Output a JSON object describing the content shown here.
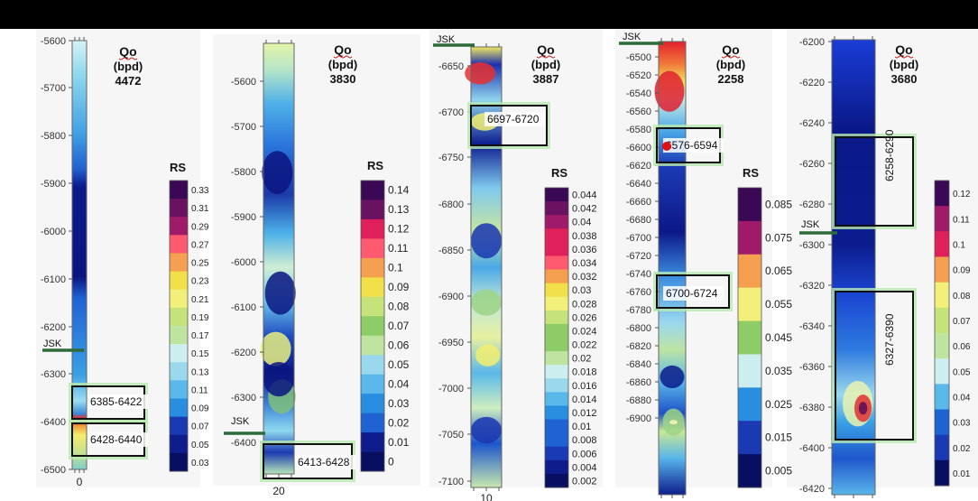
{
  "chart_data": [
    {
      "type": "heatmap",
      "well": {
        "qo_label": "Qo",
        "qo_unit": "(bpd)",
        "qo_value": "4472"
      },
      "y_ticks": [
        "-5600",
        "-5700",
        "-5800",
        "-5900",
        "-6000",
        "-6100",
        "-6200",
        "-6300",
        "-6400",
        "-6500"
      ],
      "ylim": [
        -5600,
        -6500
      ],
      "x_tick": "0",
      "marker": {
        "label": "JSK",
        "depth": -6325
      },
      "intervals": [
        {
          "label": "6385-6422",
          "from": -6330,
          "to": -6410
        },
        {
          "label": "6428-6440",
          "from": -6415,
          "to": -6470
        }
      ],
      "colorbar": {
        "title": "RS",
        "min": 0.03,
        "max": 0.33,
        "ticks": [
          "0.33",
          "0.31",
          "0.29",
          "0.27",
          "0.25",
          "0.23",
          "0.21",
          "0.19",
          "0.17",
          "0.15",
          "0.13",
          "0.11",
          "0.09",
          "0.07",
          "0.05",
          "0.03"
        ]
      }
    },
    {
      "type": "heatmap",
      "well": {
        "qo_label": "Qo",
        "qo_unit": "(bpd)",
        "qo_value": "3830"
      },
      "y_ticks": [
        "-5600",
        "-5700",
        "-5800",
        "-5900",
        "-6000",
        "-6100",
        "-6200",
        "-6300",
        "-6400"
      ],
      "ylim": [
        -5530,
        -6460
      ],
      "x_tick": "20",
      "marker": {
        "label": "JSK",
        "depth": -6378
      },
      "intervals": [
        {
          "label": "6413-6428",
          "from": -6380,
          "to": -6460
        }
      ],
      "colorbar": {
        "title": "RS",
        "min": 0,
        "max": 0.14,
        "ticks": [
          "0.14",
          "0.13",
          "0.12",
          "0.11",
          "0.1",
          "0.09",
          "0.08",
          "0.07",
          "0.06",
          "0.05",
          "0.04",
          "0.03",
          "0.02",
          "0.01",
          "0"
        ]
      }
    },
    {
      "type": "heatmap",
      "well": {
        "qo_label": "Qo",
        "qo_unit": "(bpd)",
        "qo_value": "3887"
      },
      "y_ticks": [
        "-6650",
        "-6700",
        "-6750",
        "-6800",
        "-6850",
        "-6900",
        "-6950",
        "-7000",
        "-7050",
        "-7100"
      ],
      "ylim": [
        -6630,
        -7110
      ],
      "x_tick": "10",
      "marker": {
        "label": "JSK",
        "depth": -6635
      },
      "intervals": [
        {
          "label": "6697-6720",
          "from": -6697,
          "to": -6720
        }
      ],
      "colorbar": {
        "title": "RS",
        "min": 0.002,
        "max": 0.044,
        "ticks": [
          "0.044",
          "0.042",
          "0.04",
          "0.038",
          "0.036",
          "0.034",
          "0.032",
          "0.03",
          "0.028",
          "0.026",
          "0.024",
          "0.022",
          "0.02",
          "0.018",
          "0.016",
          "0.014",
          "0.012",
          "0.01",
          "0.008",
          "0.006",
          "0.004",
          "0.002"
        ]
      }
    },
    {
      "type": "heatmap",
      "well": {
        "qo_label": "Qo",
        "qo_unit": "(bpd)",
        "qo_value": "2258"
      },
      "y_ticks": [
        "-6500",
        "-6520",
        "-6540",
        "-6560",
        "-6580",
        "-6600",
        "-6620",
        "-6640",
        "-6660",
        "-6680",
        "-6700",
        "-6720",
        "-6740",
        "-6760",
        "-6780",
        "-6800",
        "-6820",
        "-6840",
        "-6860",
        "-6880",
        "-6900"
      ],
      "ylim": [
        -6490,
        -6900
      ],
      "marker": {
        "label": "JSK",
        "depth": -6493
      },
      "intervals": [
        {
          "label": "6576-6594",
          "from": -6563,
          "to": -6603
        },
        {
          "label": "6700-6724",
          "from": -6700,
          "to": -6736
        }
      ],
      "colorbar": {
        "title": "RS",
        "min": 0.005,
        "max": 0.095,
        "ticks": [
          "0.085",
          "0.075",
          "0.065",
          "0.055",
          "0.045",
          "0.035",
          "0.025",
          "0.015",
          "0.005"
        ]
      }
    },
    {
      "type": "heatmap",
      "well": {
        "qo_label": "Qo",
        "qo_unit": "(bpd)",
        "qo_value": "3680"
      },
      "y_ticks": [
        "-6200",
        "-6220",
        "-6240",
        "-6260",
        "-6280",
        "-6300",
        "-6320",
        "-6340",
        "-6360",
        "-6380",
        "-6400",
        "-6420"
      ],
      "ylim": [
        -6200,
        -6425
      ],
      "marker": {
        "label": "JSK",
        "depth": -6296
      },
      "intervals": [
        {
          "label": "6258-6290",
          "from": -6253,
          "to": -6290
        },
        {
          "label": "6327-6390",
          "from": -6324,
          "to": -6396
        }
      ],
      "colorbar": {
        "title": "RS",
        "min": 0.01,
        "max": 0.12,
        "ticks": [
          "0.12",
          "0.11",
          "0.1",
          "0.09",
          "0.08",
          "0.07",
          "0.06",
          "0.05",
          "0.04",
          "0.03",
          "0.02",
          "0.01"
        ]
      }
    }
  ]
}
